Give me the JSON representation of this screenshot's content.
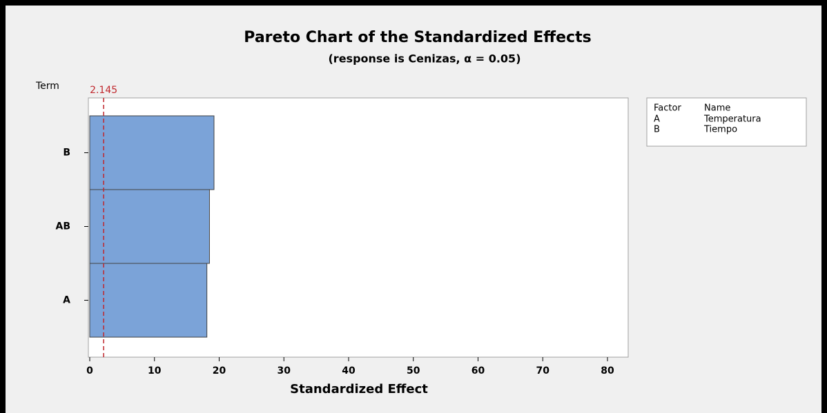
{
  "chart_data": {
    "type": "bar",
    "orientation": "horizontal",
    "title": "Pareto Chart of the Standardized Effects",
    "subtitle": "(response is Cenizas, α = 0.05)",
    "y_label": "Term",
    "x_label": "Standardized Effect",
    "categories": [
      "B",
      "AB",
      "A"
    ],
    "values": [
      19.2,
      18.5,
      18.1
    ],
    "color": "#7ba3d8",
    "xlim": [
      0,
      83.2
    ],
    "xticks": [
      0,
      10,
      20,
      30,
      40,
      50,
      60,
      70,
      80
    ],
    "reference_line": 2.145,
    "reference_color": "#c0272d",
    "factor_table": {
      "header": [
        "Factor",
        "Name"
      ],
      "rows": [
        [
          "A",
          "Temperatura"
        ],
        [
          "B",
          "Tiempo"
        ]
      ]
    }
  }
}
